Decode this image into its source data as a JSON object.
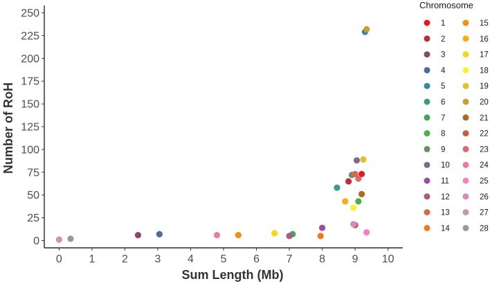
{
  "chart_data": {
    "type": "scatter",
    "xlabel": "Sum Length (Mb)",
    "ylabel": "Number of RoH",
    "xlim": [
      -0.45,
      10.45
    ],
    "ylim": [
      -8,
      258
    ],
    "xticks": [
      0,
      1,
      2,
      3,
      4,
      5,
      6,
      7,
      8,
      9,
      10
    ],
    "yticks": [
      0,
      25,
      50,
      75,
      100,
      125,
      150,
      175,
      200,
      225,
      250
    ],
    "grid": false,
    "legend": {
      "title": "Chromosome",
      "placement": "right",
      "columns": 2
    },
    "series": [
      {
        "name": "1",
        "color": "#e41a1c",
        "x": 9.2,
        "y": 73
      },
      {
        "name": "2",
        "color": "#b8303f",
        "x": 8.8,
        "y": 65
      },
      {
        "name": "3",
        "color": "#8c4868",
        "x": 2.4,
        "y": 6
      },
      {
        "name": "4",
        "color": "#4a6aa3",
        "x": 3.05,
        "y": 7
      },
      {
        "name": "5",
        "color": "#3a86a8",
        "x": 9.3,
        "y": 229
      },
      {
        "name": "6",
        "color": "#3f9786",
        "x": 8.45,
        "y": 58
      },
      {
        "name": "7",
        "color": "#47a35c",
        "x": 7.1,
        "y": 7
      },
      {
        "name": "8",
        "color": "#4daf4a",
        "x": 9.1,
        "y": 43
      },
      {
        "name": "9",
        "color": "#6a9063",
        "x": 8.9,
        "y": 72
      },
      {
        "name": "10",
        "color": "#7f6a89",
        "x": 9.05,
        "y": 88
      },
      {
        "name": "11",
        "color": "#984ea3",
        "x": 8.0,
        "y": 14
      },
      {
        "name": "12",
        "color": "#b05a7a",
        "x": 7.0,
        "y": 5
      },
      {
        "name": "13",
        "color": "#d46a4c",
        "x": 9.0,
        "y": 73
      },
      {
        "name": "14",
        "color": "#f07a1a",
        "x": 7.95,
        "y": 5
      },
      {
        "name": "15",
        "color": "#f58f10",
        "x": 5.45,
        "y": 6
      },
      {
        "name": "16",
        "color": "#f6ab1a",
        "x": 8.7,
        "y": 43
      },
      {
        "name": "17",
        "color": "#f7d51a",
        "x": 6.55,
        "y": 8
      },
      {
        "name": "18",
        "color": "#fff030",
        "x": 8.95,
        "y": 36
      },
      {
        "name": "19",
        "color": "#e2bf30",
        "x": 9.25,
        "y": 89
      },
      {
        "name": "20",
        "color": "#c6a033",
        "x": 9.35,
        "y": 232
      },
      {
        "name": "21",
        "color": "#ae6a24",
        "x": 9.2,
        "y": 51
      },
      {
        "name": "22",
        "color": "#c25e48",
        "x": 9.0,
        "y": 17
      },
      {
        "name": "23",
        "color": "#d96a70",
        "x": 9.1,
        "y": 68
      },
      {
        "name": "24",
        "color": "#ee7aa4",
        "x": 4.8,
        "y": 6
      },
      {
        "name": "25",
        "color": "#f781bf",
        "x": 9.35,
        "y": 9
      },
      {
        "name": "26",
        "color": "#d98ab8",
        "x": 8.95,
        "y": 18
      },
      {
        "name": "27",
        "color": "#c698ae",
        "x": 0.0,
        "y": 1
      },
      {
        "name": "28",
        "color": "#999999",
        "x": 0.35,
        "y": 2
      }
    ]
  }
}
